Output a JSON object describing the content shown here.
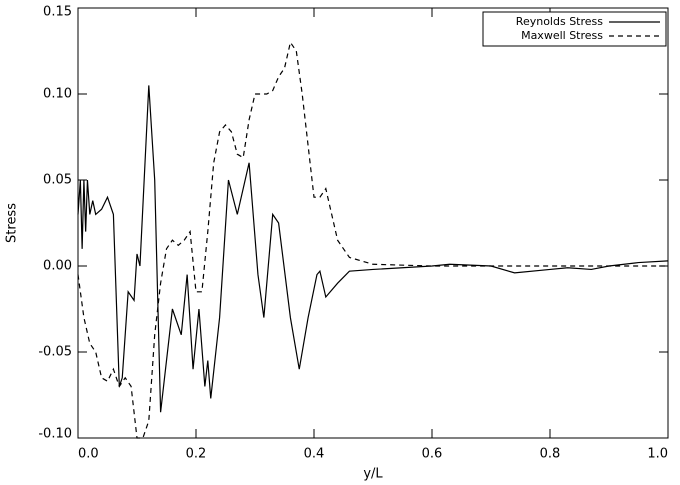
{
  "chart_data": {
    "type": "line",
    "xlabel": "y/L",
    "ylabel": "Stress",
    "xlim": [
      0,
      1
    ],
    "ylim": [
      -0.1,
      0.15
    ],
    "xticks": [
      {
        "value": 0,
        "label": "0.0"
      },
      {
        "value": 0.2,
        "label": "0.2"
      },
      {
        "value": 0.4,
        "label": "0.4"
      },
      {
        "value": 0.6,
        "label": "0.6"
      },
      {
        "value": 0.8,
        "label": "0.8"
      },
      {
        "value": 1,
        "label": "1.0"
      }
    ],
    "yticks": [
      {
        "value": -0.1,
        "label": "-0.10"
      },
      -0.05,
      {
        "value": 0,
        "label": "0.00"
      },
      0.05,
      {
        "value": 0.1,
        "label": "0.10"
      },
      0.15
    ],
    "legend": "upper right",
    "series": [
      {
        "name": "Reynolds Stress",
        "color": "#000000",
        "dash": "solid",
        "x": [
          0,
          0.004,
          0.007,
          0.01,
          0.013,
          0.016,
          0.02,
          0.025,
          0.03,
          0.04,
          0.05,
          0.06,
          0.07,
          0.075,
          0.085,
          0.095,
          0.1,
          0.105,
          0.12,
          0.13,
          0.14,
          0.16,
          0.175,
          0.185,
          0.195,
          0.205,
          0.215,
          0.22,
          0.225,
          0.24,
          0.255,
          0.27,
          0.29,
          0.305,
          0.315,
          0.33,
          0.34,
          0.36,
          0.375,
          0.39,
          0.405,
          0.41,
          0.42,
          0.44,
          0.46,
          0.5,
          0.6,
          0.63,
          0.7,
          0.74,
          0.8,
          0.83,
          0.87,
          0.9,
          0.95,
          1.0
        ],
        "values": [
          0.03,
          0.05,
          0.01,
          0.05,
          0.02,
          0.05,
          0.03,
          0.038,
          0.03,
          0.033,
          0.04,
          0.03,
          -0.07,
          -0.065,
          -0.015,
          -0.02,
          0.007,
          0.0,
          0.105,
          0.05,
          -0.085,
          -0.025,
          -0.04,
          -0.005,
          -0.06,
          -0.025,
          -0.07,
          -0.055,
          -0.077,
          -0.03,
          0.05,
          0.03,
          0.06,
          -0.005,
          -0.03,
          0.03,
          0.025,
          -0.03,
          -0.06,
          -0.03,
          -0.005,
          -0.003,
          -0.018,
          -0.01,
          -0.003,
          -0.002,
          0,
          0.001,
          0,
          -0.004,
          -0.002,
          -0.001,
          -0.002,
          0,
          0.002,
          0.003
        ]
      },
      {
        "name": "Maxwell Stress",
        "color": "#000000",
        "dash": "dashed",
        "x": [
          0,
          0.01,
          0.02,
          0.03,
          0.04,
          0.05,
          0.06,
          0.07,
          0.08,
          0.09,
          0.1,
          0.11,
          0.12,
          0.13,
          0.14,
          0.15,
          0.16,
          0.17,
          0.18,
          0.19,
          0.2,
          0.21,
          0.22,
          0.23,
          0.24,
          0.25,
          0.26,
          0.27,
          0.28,
          0.29,
          0.3,
          0.31,
          0.32,
          0.33,
          0.34,
          0.35,
          0.36,
          0.37,
          0.38,
          0.39,
          0.4,
          0.41,
          0.42,
          0.43,
          0.44,
          0.46,
          0.5,
          0.6,
          1.0
        ],
        "values": [
          -0.005,
          -0.03,
          -0.045,
          -0.05,
          -0.065,
          -0.067,
          -0.06,
          -0.07,
          -0.065,
          -0.07,
          -0.1,
          -0.1,
          -0.09,
          -0.04,
          -0.01,
          0.01,
          0.015,
          0.012,
          0.015,
          0.02,
          -0.015,
          -0.015,
          0.02,
          0.06,
          0.078,
          0.082,
          0.078,
          0.065,
          0.063,
          0.085,
          0.1,
          0.1,
          0.1,
          0.102,
          0.11,
          0.115,
          0.13,
          0.125,
          0.1,
          0.07,
          0.04,
          0.04,
          0.045,
          0.03,
          0.015,
          0.005,
          0.001,
          0,
          0
        ]
      }
    ]
  }
}
